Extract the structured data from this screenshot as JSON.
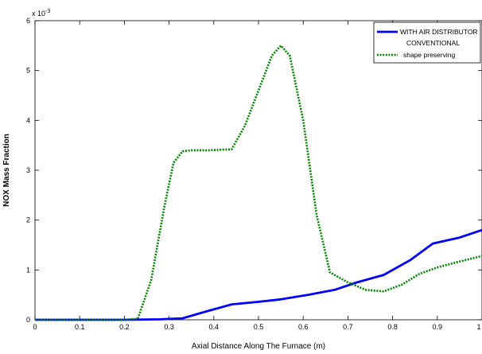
{
  "chart_data": {
    "type": "line",
    "title": "",
    "xlabel": "Axial Distance Along The Furnace (m)",
    "ylabel": "NOX Mass Fraction",
    "y_exponent_label": "x 10",
    "y_exponent_power": "-3",
    "xlim": [
      0,
      1
    ],
    "ylim": [
      0,
      6
    ],
    "xticks": [
      0,
      0.1,
      0.2,
      0.3,
      0.4,
      0.5,
      0.6,
      0.7,
      0.8,
      0.9,
      1
    ],
    "xtick_labels": [
      "0",
      "0.1",
      "0.2",
      "0.3",
      "0.4",
      "0.5",
      "0.6",
      "0.7",
      "0.8",
      "0.9",
      "1"
    ],
    "yticks": [
      0,
      1,
      2,
      3,
      4,
      5,
      6
    ],
    "ytick_labels": [
      "0",
      "1",
      "2",
      "3",
      "4",
      "5",
      "6"
    ],
    "grid": false,
    "legend_position": "top-right",
    "series": [
      {
        "name": "WITH AIR DISTRIBUTOR",
        "name_line2": "CONVENTIONAL",
        "color": "#0000ff",
        "style": "solid",
        "x": [
          0,
          0.1,
          0.2,
          0.28,
          0.33,
          0.38,
          0.44,
          0.5,
          0.55,
          0.61,
          0.67,
          0.72,
          0.78,
          0.84,
          0.89,
          0.95,
          1.0
        ],
        "y": [
          0,
          0,
          0,
          0.01,
          0.03,
          0.16,
          0.31,
          0.36,
          0.41,
          0.5,
          0.6,
          0.75,
          0.9,
          1.2,
          1.53,
          1.65,
          1.8
        ]
      },
      {
        "name": "shape preserving",
        "color": "#008000",
        "style": "dotted",
        "x": [
          0,
          0.1,
          0.2,
          0.23,
          0.26,
          0.29,
          0.31,
          0.33,
          0.35,
          0.39,
          0.44,
          0.47,
          0.5,
          0.53,
          0.55,
          0.57,
          0.6,
          0.63,
          0.66,
          0.7,
          0.74,
          0.78,
          0.82,
          0.86,
          0.9,
          0.95,
          1.0
        ],
        "y": [
          0,
          0,
          0,
          0.02,
          0.8,
          2.3,
          3.15,
          3.38,
          3.4,
          3.4,
          3.42,
          3.9,
          4.6,
          5.3,
          5.5,
          5.3,
          4.0,
          2.1,
          0.95,
          0.75,
          0.6,
          0.57,
          0.7,
          0.92,
          1.05,
          1.17,
          1.28
        ]
      }
    ]
  }
}
